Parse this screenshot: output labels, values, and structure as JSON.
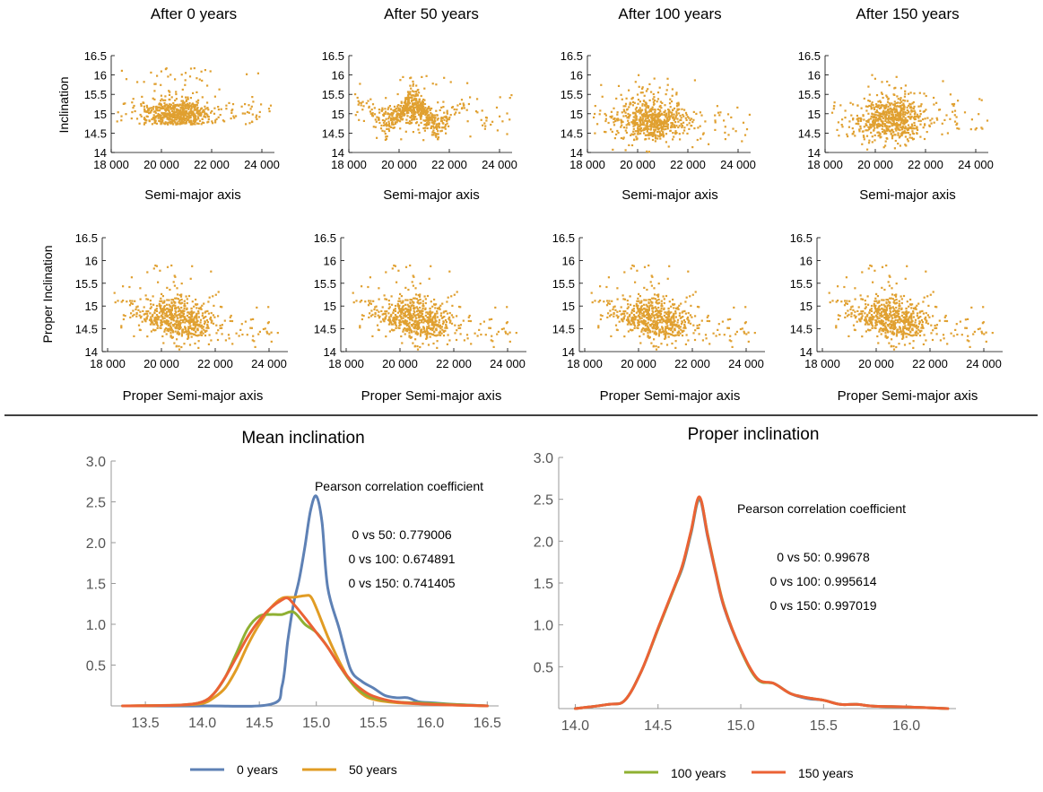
{
  "chart_data": {
    "type": "scatter",
    "marker_color": "#E0A030",
    "scatter_row1": {
      "titles": [
        "After 0 years",
        "After 50 years",
        "After 100 years",
        "After 150 years"
      ],
      "xlabel": "Semi-major axis",
      "ylabel": "Inclination",
      "xlim": [
        18000,
        24500
      ],
      "ylim": [
        14,
        16.5
      ],
      "xticks": [
        18000,
        20000,
        22000,
        24000
      ],
      "xtick_labels": [
        "18 000",
        "20 000",
        "22 000",
        "24 000"
      ],
      "yticks": [
        14,
        14.5,
        15,
        15.5,
        16,
        16.5
      ],
      "ytick_labels": [
        "14",
        "14.5",
        "15",
        "15.5",
        "16",
        "16.5"
      ]
    },
    "scatter_row2": {
      "xlabel": "Proper Semi-major axis",
      "ylabel": "Proper Inclination",
      "xlim": [
        17800,
        24700
      ],
      "ylim": [
        14,
        16.5
      ],
      "xticks": [
        18000,
        20000,
        22000,
        24000
      ],
      "xtick_labels": [
        "18 000",
        "20 000",
        "22 000",
        "24 000"
      ],
      "yticks": [
        14,
        14.5,
        15,
        15.5,
        16,
        16.5
      ],
      "ytick_labels": [
        "14",
        "14.5",
        "15",
        "15.5",
        "16",
        "16.5"
      ]
    },
    "density_left": {
      "type": "line",
      "title": "Mean inclination",
      "xlim": [
        13.2,
        16.6
      ],
      "ylim": [
        0,
        3.0
      ],
      "xticks": [
        13.5,
        14.0,
        14.5,
        15.0,
        15.5,
        16.0,
        16.5
      ],
      "xtick_labels": [
        "13.5",
        "14.0",
        "14.5",
        "15.0",
        "15.5",
        "16.0",
        "16.5"
      ],
      "yticks": [
        0.5,
        1.0,
        1.5,
        2.0,
        2.5,
        3.0
      ],
      "ytick_labels": [
        "0.5",
        "1.0",
        "1.5",
        "2.0",
        "2.5",
        "3.0"
      ],
      "annotation_title": "Pearson correlation coefficient",
      "annotations": [
        "0 vs 50: 0.779006",
        "0 vs 100: 0.674891",
        "0 vs 150: 0.741405"
      ],
      "series": [
        {
          "name": "0 years",
          "color": "#5E81B5",
          "x": [
            13.3,
            14.0,
            14.6,
            14.7,
            14.75,
            14.8,
            14.85,
            14.9,
            14.95,
            15.0,
            15.05,
            15.1,
            15.2,
            15.3,
            15.4,
            15.5,
            15.6,
            15.7,
            15.8,
            15.9,
            16.0,
            16.2,
            16.5
          ],
          "y": [
            0,
            0,
            0.02,
            0.25,
            0.8,
            1.25,
            1.55,
            1.95,
            2.4,
            2.57,
            2.25,
            1.45,
            0.95,
            0.45,
            0.3,
            0.22,
            0.13,
            0.1,
            0.1,
            0.05,
            0.04,
            0.02,
            0
          ]
        },
        {
          "name": "50 years",
          "color": "#E19C24",
          "x": [
            13.3,
            13.8,
            14.0,
            14.1,
            14.2,
            14.3,
            14.4,
            14.5,
            14.6,
            14.7,
            14.8,
            14.9,
            14.95,
            15.0,
            15.1,
            15.2,
            15.3,
            15.4,
            15.5,
            15.7,
            16.0,
            16.5
          ],
          "y": [
            0,
            0.01,
            0.03,
            0.1,
            0.22,
            0.45,
            0.75,
            1.0,
            1.2,
            1.32,
            1.33,
            1.35,
            1.34,
            1.2,
            0.85,
            0.55,
            0.3,
            0.15,
            0.08,
            0.04,
            0.02,
            0
          ]
        },
        {
          "name": "100 years",
          "color": "#8FB032",
          "x": [
            13.3,
            13.8,
            14.0,
            14.1,
            14.2,
            14.3,
            14.4,
            14.5,
            14.6,
            14.7,
            14.8,
            14.9,
            15.0,
            15.1,
            15.2,
            15.3,
            15.4,
            15.5,
            15.7,
            16.0,
            16.5
          ],
          "y": [
            0,
            0.01,
            0.05,
            0.15,
            0.35,
            0.65,
            0.95,
            1.1,
            1.12,
            1.12,
            1.15,
            1.0,
            0.9,
            0.72,
            0.5,
            0.3,
            0.17,
            0.1,
            0.05,
            0.03,
            0
          ]
        },
        {
          "name": "150 years",
          "color": "#EB6235",
          "x": [
            13.3,
            13.8,
            14.0,
            14.1,
            14.2,
            14.3,
            14.4,
            14.5,
            14.6,
            14.7,
            14.75,
            14.8,
            14.9,
            15.0,
            15.1,
            15.2,
            15.3,
            15.4,
            15.5,
            15.7,
            16.0,
            16.5
          ],
          "y": [
            0,
            0.01,
            0.05,
            0.15,
            0.35,
            0.6,
            0.85,
            1.05,
            1.2,
            1.3,
            1.32,
            1.25,
            1.08,
            0.9,
            0.72,
            0.5,
            0.32,
            0.2,
            0.12,
            0.05,
            0.02,
            0
          ]
        }
      ]
    },
    "density_right": {
      "type": "line",
      "title": "Proper inclination",
      "xlim": [
        13.9,
        16.3
      ],
      "ylim": [
        0,
        3.0
      ],
      "xticks": [
        14.0,
        14.5,
        15.0,
        15.5,
        16.0
      ],
      "xtick_labels": [
        "14.0",
        "14.5",
        "15.0",
        "15.5",
        "16.0"
      ],
      "yticks": [
        0.5,
        1.0,
        1.5,
        2.0,
        2.5,
        3.0
      ],
      "ytick_labels": [
        "0.5",
        "1.0",
        "1.5",
        "2.0",
        "2.5",
        "3.0"
      ],
      "annotation_title": "Pearson correlation coefficient",
      "annotations": [
        "0 vs 50: 0.99678",
        "0 vs 100: 0.995614",
        "0 vs 150: 0.997019"
      ],
      "series": [
        {
          "name": "0 years",
          "color": "#5E81B5",
          "x": [
            14.0,
            14.2,
            14.3,
            14.4,
            14.5,
            14.6,
            14.65,
            14.7,
            14.75,
            14.8,
            14.85,
            14.9,
            15.0,
            15.1,
            15.2,
            15.3,
            15.4,
            15.5,
            15.6,
            15.7,
            15.8,
            16.0,
            16.25
          ],
          "y": [
            0,
            0.05,
            0.1,
            0.45,
            0.95,
            1.45,
            1.7,
            2.1,
            2.5,
            2.05,
            1.6,
            1.2,
            0.7,
            0.35,
            0.3,
            0.18,
            0.12,
            0.1,
            0.05,
            0.05,
            0.03,
            0.02,
            0
          ]
        },
        {
          "name": "100 years",
          "color": "#8FB032",
          "x": [
            14.0,
            14.2,
            14.3,
            14.4,
            14.5,
            14.6,
            14.65,
            14.7,
            14.75,
            14.8,
            14.85,
            14.9,
            15.0,
            15.1,
            15.2,
            15.3,
            15.4,
            15.5,
            15.6,
            15.7,
            15.8,
            16.0,
            16.25
          ],
          "y": [
            0,
            0.05,
            0.1,
            0.45,
            0.95,
            1.45,
            1.72,
            2.12,
            2.52,
            2.08,
            1.62,
            1.22,
            0.7,
            0.35,
            0.3,
            0.18,
            0.13,
            0.1,
            0.05,
            0.05,
            0.03,
            0.02,
            0
          ]
        },
        {
          "name": "150 years",
          "color": "#EB6235",
          "x": [
            14.0,
            14.2,
            14.3,
            14.4,
            14.5,
            14.6,
            14.65,
            14.7,
            14.75,
            14.8,
            14.85,
            14.9,
            15.0,
            15.1,
            15.2,
            15.3,
            15.4,
            15.5,
            15.6,
            15.7,
            15.8,
            16.0,
            16.25
          ],
          "y": [
            0,
            0.05,
            0.1,
            0.45,
            0.96,
            1.46,
            1.73,
            2.13,
            2.53,
            2.07,
            1.61,
            1.21,
            0.71,
            0.36,
            0.3,
            0.18,
            0.13,
            0.1,
            0.05,
            0.05,
            0.03,
            0.02,
            0
          ]
        }
      ]
    },
    "legend_left": [
      "0 years",
      "50 years"
    ],
    "legend_right": [
      "100 years",
      "150 years"
    ]
  }
}
